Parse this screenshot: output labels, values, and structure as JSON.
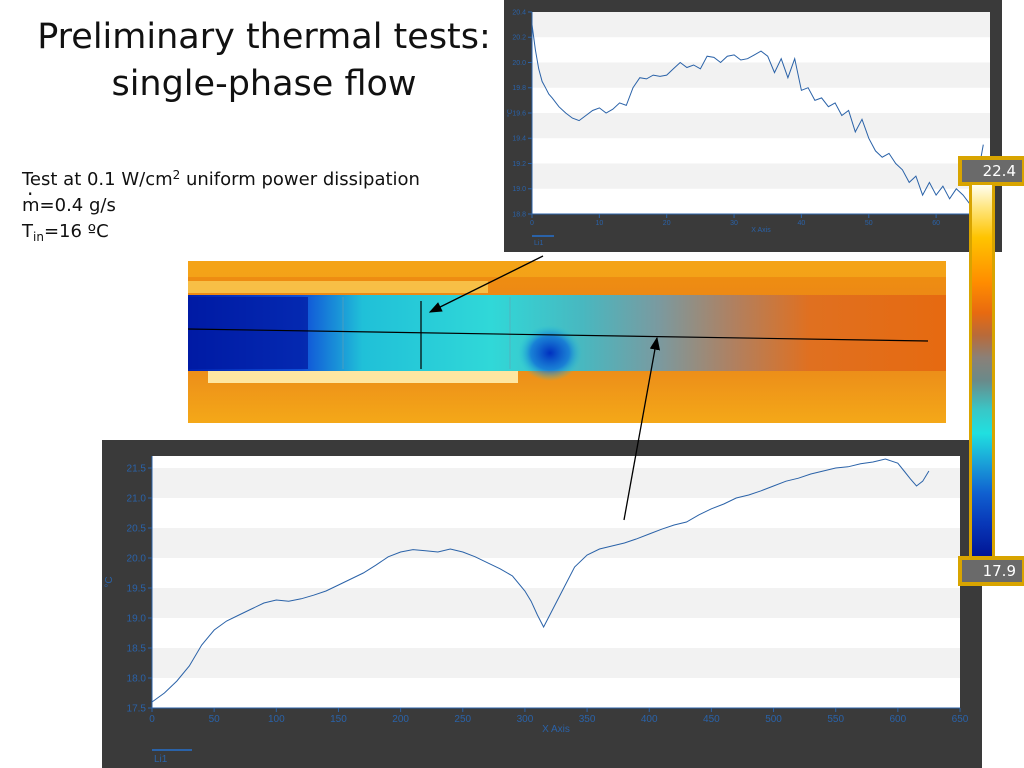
{
  "slide": {
    "title_line1": "Preliminary thermal tests:",
    "title_line2": "single-phase flow",
    "info_line1_pre": "Test at 0.1 W/cm",
    "info_line1_sup": "2",
    "info_line1_post": " uniform power dissipation",
    "info_line2_m": "m",
    "info_line2_rest": "=0.4 g/s",
    "info_line3_T": "T",
    "info_line3_sub": "in",
    "info_line3_rest": "=16 ºC"
  },
  "colorbar": {
    "max_label": "22.4",
    "min_label": "17.9"
  },
  "colors": {
    "frame": "#3a3a3a",
    "line": "#2a62a8",
    "accent": "#d8a400"
  },
  "chart_data": [
    {
      "type": "line",
      "xlabel": "X Axis",
      "ylabel": "°C",
      "xlim": [
        0,
        68
      ],
      "ylim": [
        18.8,
        20.4
      ],
      "x_ticks": [
        "0",
        "10",
        "20",
        "30",
        "40",
        "50",
        "60"
      ],
      "y_ticks": [
        "18.8",
        "19.0",
        "19.2",
        "19.4",
        "19.6",
        "19.8",
        "20.0",
        "20.2",
        "20.4"
      ],
      "legend": [
        "Li1"
      ],
      "series": [
        {
          "name": "Li1",
          "x": [
            0,
            0.5,
            1,
            1.5,
            2,
            2.5,
            3,
            4,
            5,
            6,
            7,
            8,
            9,
            10,
            11,
            12,
            13,
            14,
            15,
            16,
            17,
            18,
            19,
            20,
            21,
            22,
            23,
            24,
            25,
            26,
            27,
            28,
            29,
            30,
            31,
            32,
            33,
            34,
            35,
            36,
            37,
            38,
            39,
            40,
            41,
            42,
            43,
            44,
            45,
            46,
            47,
            48,
            49,
            50,
            51,
            52,
            53,
            54,
            55,
            56,
            57,
            58,
            59,
            60,
            61,
            62,
            63,
            64,
            65,
            66,
            67
          ],
          "y": [
            20.3,
            20.1,
            19.95,
            19.85,
            19.8,
            19.75,
            19.72,
            19.65,
            19.6,
            19.56,
            19.54,
            19.58,
            19.62,
            19.64,
            19.6,
            19.63,
            19.68,
            19.66,
            19.8,
            19.88,
            19.87,
            19.9,
            19.89,
            19.9,
            19.95,
            20.0,
            19.96,
            19.98,
            19.95,
            20.05,
            20.04,
            20.0,
            20.05,
            20.06,
            20.02,
            20.03,
            20.06,
            20.09,
            20.05,
            19.92,
            20.03,
            19.88,
            20.03,
            19.78,
            19.8,
            19.7,
            19.72,
            19.65,
            19.68,
            19.58,
            19.62,
            19.45,
            19.55,
            19.4,
            19.3,
            19.25,
            19.28,
            19.2,
            19.15,
            19.05,
            19.1,
            18.95,
            19.05,
            18.95,
            19.02,
            18.92,
            19.0,
            18.95,
            18.88,
            19.05,
            19.35
          ]
        }
      ]
    },
    {
      "type": "line",
      "xlabel": "X Axis",
      "ylabel": "°C",
      "xlim": [
        0,
        650
      ],
      "ylim": [
        17.5,
        21.7
      ],
      "x_ticks": [
        "0",
        "50",
        "100",
        "150",
        "200",
        "250",
        "300",
        "350",
        "400",
        "450",
        "500",
        "550",
        "600",
        "650"
      ],
      "y_ticks": [
        "17.5",
        "18.0",
        "18.5",
        "19.0",
        "19.5",
        "20.0",
        "20.5",
        "21.0",
        "21.5"
      ],
      "legend": [
        "Li1"
      ],
      "series": [
        {
          "name": "Li1",
          "x": [
            0,
            10,
            20,
            30,
            40,
            50,
            60,
            70,
            80,
            90,
            100,
            110,
            120,
            130,
            140,
            150,
            160,
            170,
            180,
            190,
            200,
            210,
            220,
            230,
            240,
            250,
            260,
            270,
            280,
            290,
            300,
            305,
            310,
            315,
            320,
            330,
            340,
            350,
            360,
            370,
            380,
            390,
            400,
            410,
            420,
            430,
            440,
            450,
            460,
            470,
            480,
            490,
            500,
            510,
            520,
            530,
            540,
            550,
            560,
            570,
            580,
            590,
            600,
            605,
            610,
            615,
            620,
            625
          ],
          "y": [
            17.6,
            17.75,
            17.95,
            18.2,
            18.55,
            18.8,
            18.95,
            19.05,
            19.15,
            19.25,
            19.3,
            19.28,
            19.32,
            19.38,
            19.45,
            19.55,
            19.65,
            19.75,
            19.88,
            20.02,
            20.1,
            20.14,
            20.12,
            20.1,
            20.15,
            20.1,
            20.02,
            19.92,
            19.82,
            19.7,
            19.45,
            19.28,
            19.05,
            18.85,
            19.05,
            19.45,
            19.85,
            20.05,
            20.15,
            20.2,
            20.25,
            20.32,
            20.4,
            20.48,
            20.55,
            20.6,
            20.72,
            20.82,
            20.9,
            21.0,
            21.05,
            21.12,
            21.2,
            21.28,
            21.33,
            21.4,
            21.45,
            21.5,
            21.52,
            21.57,
            21.6,
            21.65,
            21.58,
            21.45,
            21.32,
            21.2,
            21.28,
            21.45
          ]
        }
      ]
    }
  ]
}
